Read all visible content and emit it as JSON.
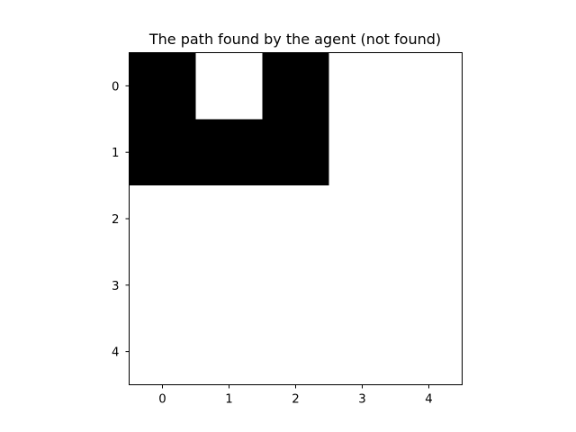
{
  "chart_data": {
    "type": "heatmap",
    "title": "The path found by the agent (not found)",
    "xlabel": "",
    "ylabel": "",
    "x_ticks": [
      0,
      1,
      2,
      3,
      4
    ],
    "y_ticks": [
      0,
      1,
      2,
      3,
      4
    ],
    "xlim": [
      -0.5,
      4.5
    ],
    "ylim": [
      4.5,
      -0.5
    ],
    "grid": false,
    "colormap": {
      "0": "#ffffff",
      "1": "#000000"
    },
    "matrix": [
      [
        1,
        0,
        1,
        0,
        0
      ],
      [
        1,
        1,
        1,
        0,
        0
      ],
      [
        0,
        0,
        0,
        0,
        0
      ],
      [
        0,
        0,
        0,
        0,
        0
      ],
      [
        0,
        0,
        0,
        0,
        0
      ]
    ]
  }
}
